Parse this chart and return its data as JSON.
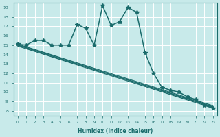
{
  "xlabel": "Humidex (Indice chaleur)",
  "bg_color": "#c8eaea",
  "line_color": "#1a6b6b",
  "grid_color": "#ffffff",
  "xlim": [
    -0.5,
    23.5
  ],
  "ylim": [
    7.5,
    19.5
  ],
  "yticks": [
    8,
    9,
    10,
    11,
    12,
    13,
    14,
    15,
    16,
    17,
    18,
    19
  ],
  "xticks": [
    0,
    1,
    2,
    3,
    4,
    5,
    6,
    7,
    8,
    9,
    10,
    11,
    12,
    13,
    14,
    15,
    16,
    17,
    18,
    19,
    20,
    21,
    22,
    23
  ],
  "line_main": {
    "x": [
      0,
      1,
      2,
      3,
      4,
      5,
      6,
      7,
      8,
      9,
      10,
      11,
      12,
      13,
      14,
      15,
      16,
      17,
      18,
      19,
      20,
      21,
      22,
      23
    ],
    "y": [
      15.1,
      15.0,
      15.5,
      15.5,
      15.0,
      15.0,
      15.0,
      17.2,
      16.8,
      15.0,
      19.2,
      17.1,
      17.5,
      19.0,
      18.5,
      14.2,
      12.0,
      10.5,
      10.2,
      10.0,
      9.5,
      9.2,
      8.6,
      8.3
    ],
    "marker": "*",
    "markersize": 4,
    "linewidth": 1.1
  },
  "lines_straight": [
    {
      "x": [
        0,
        23
      ],
      "y": [
        15.1,
        8.55
      ],
      "marker": "D",
      "markersize": 2,
      "linewidth": 0.9
    },
    {
      "x": [
        0,
        23
      ],
      "y": [
        15.0,
        8.4
      ],
      "marker": "D",
      "markersize": 2,
      "linewidth": 0.9
    },
    {
      "x": [
        0,
        23
      ],
      "y": [
        14.9,
        8.3
      ],
      "marker": "D",
      "markersize": 2,
      "linewidth": 0.9
    },
    {
      "x": [
        0,
        23
      ],
      "y": [
        15.0,
        8.45
      ],
      "marker": "D",
      "markersize": 2,
      "linewidth": 0.9
    }
  ]
}
